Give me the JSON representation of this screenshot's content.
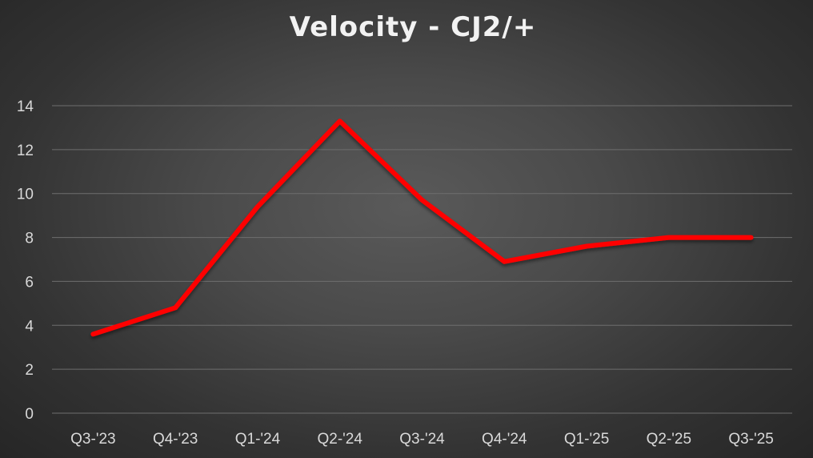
{
  "chart_data": {
    "type": "line",
    "title": "Velocity - CJ2/+",
    "xlabel": "",
    "ylabel": "",
    "categories": [
      "Q3-'23",
      "Q4-'23",
      "Q1-'24",
      "Q2-'24",
      "Q3-'24",
      "Q4-'24",
      "Q1-'25",
      "Q2-'25",
      "Q3-'25"
    ],
    "yticks": [
      "0",
      "2",
      "4",
      "6",
      "8",
      "10",
      "12",
      "14"
    ],
    "ylim": [
      0,
      14
    ],
    "grid": true,
    "legend": "none",
    "series": [
      {
        "color": "#ff0000",
        "values": [
          3.6,
          4.8,
          9.4,
          13.3,
          9.7,
          6.9,
          7.6,
          8.0,
          8.0
        ]
      }
    ]
  }
}
